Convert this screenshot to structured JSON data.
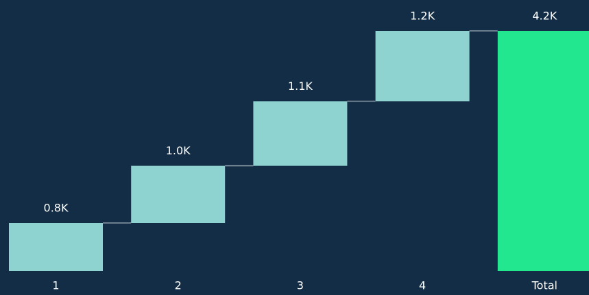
{
  "chart_data": {
    "type": "waterfall",
    "categories": [
      "1",
      "2",
      "3",
      "4",
      "Total"
    ],
    "values": [
      0.84,
      1.0,
      1.13,
      1.23,
      4.2
    ],
    "value_labels": [
      "0.8K",
      "1.0K",
      "1.1K",
      "1.2K",
      "4.2K"
    ],
    "color": "#8fd3d1",
    "total_color": "#22e78f",
    "background": "#122d45"
  }
}
